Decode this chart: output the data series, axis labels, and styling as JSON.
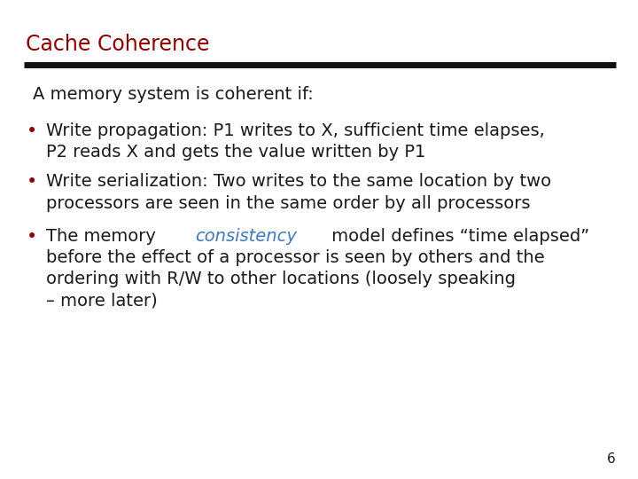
{
  "title": "Cache Coherence",
  "title_color": "#8B0000",
  "background_color": "#FFFFFF",
  "separator_color": "#111111",
  "body_text_color": "#1a1a1a",
  "bullet_color": "#8B0000",
  "consistency_color": "#4477BB",
  "page_number": "6",
  "intro_text": "A memory system is coherent if:",
  "bullet1_line1": "Write propagation: P1 writes to X, sufficient time elapses,",
  "bullet1_line2": "P2 reads X and gets the value written by P1",
  "bullet2_line1": "Write serialization: Two writes to the same location by two",
  "bullet2_line2": "processors are seen in the same order by all processors",
  "bullet3_before_italic": "The memory ",
  "bullet3_italic": "consistency",
  "bullet3_after_italic": " model defines “time elapsed”",
  "bullet3_line2": "before the effect of a processor is seen by others and the",
  "bullet3_line3": "ordering with R/W to other locations (loosely speaking",
  "bullet3_line4": "– more later)",
  "font_size_title": 17,
  "font_size_body": 14,
  "title_font": "DejaVu Sans",
  "body_font": "DejaVu Sans"
}
